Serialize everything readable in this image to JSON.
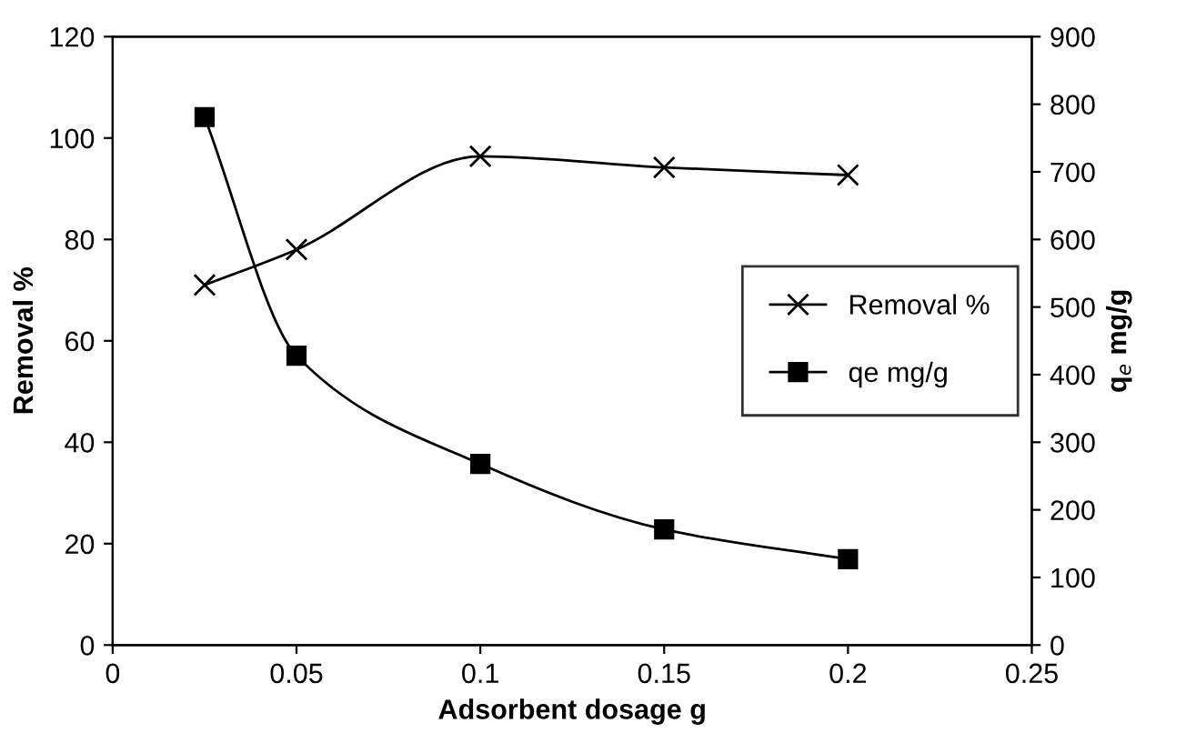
{
  "chart_data": {
    "type": "line",
    "xlabel": "Adsorbent dosage g",
    "ylabel": "Removal %",
    "y2label": "q$_{e}$ mg/g",
    "xlim": [
      0,
      0.25
    ],
    "xticks": [
      0,
      0.05,
      0.1,
      0.15,
      0.2,
      0.25
    ],
    "ylim": [
      0,
      120
    ],
    "yticks": [
      0,
      20,
      40,
      60,
      80,
      100,
      120
    ],
    "y2lim": [
      0,
      900
    ],
    "y2ticks": [
      0,
      100,
      200,
      300,
      400,
      500,
      600,
      700,
      800,
      900
    ],
    "x": [
      0.025,
      0.05,
      0.1,
      0.15,
      0.2
    ],
    "series": [
      {
        "name": "Removal %",
        "color": "#000000",
        "marker": "cross",
        "values": [
          71,
          78,
          96.4,
          94.2,
          92.7
        ]
      },
      {
        "name": "qe mg/g",
        "color": "#000000",
        "marker": "square",
        "axis": "y2",
        "values": [
          781,
          428,
          268,
          171,
          127
        ]
      }
    ],
    "grid": false,
    "legend": "right"
  }
}
